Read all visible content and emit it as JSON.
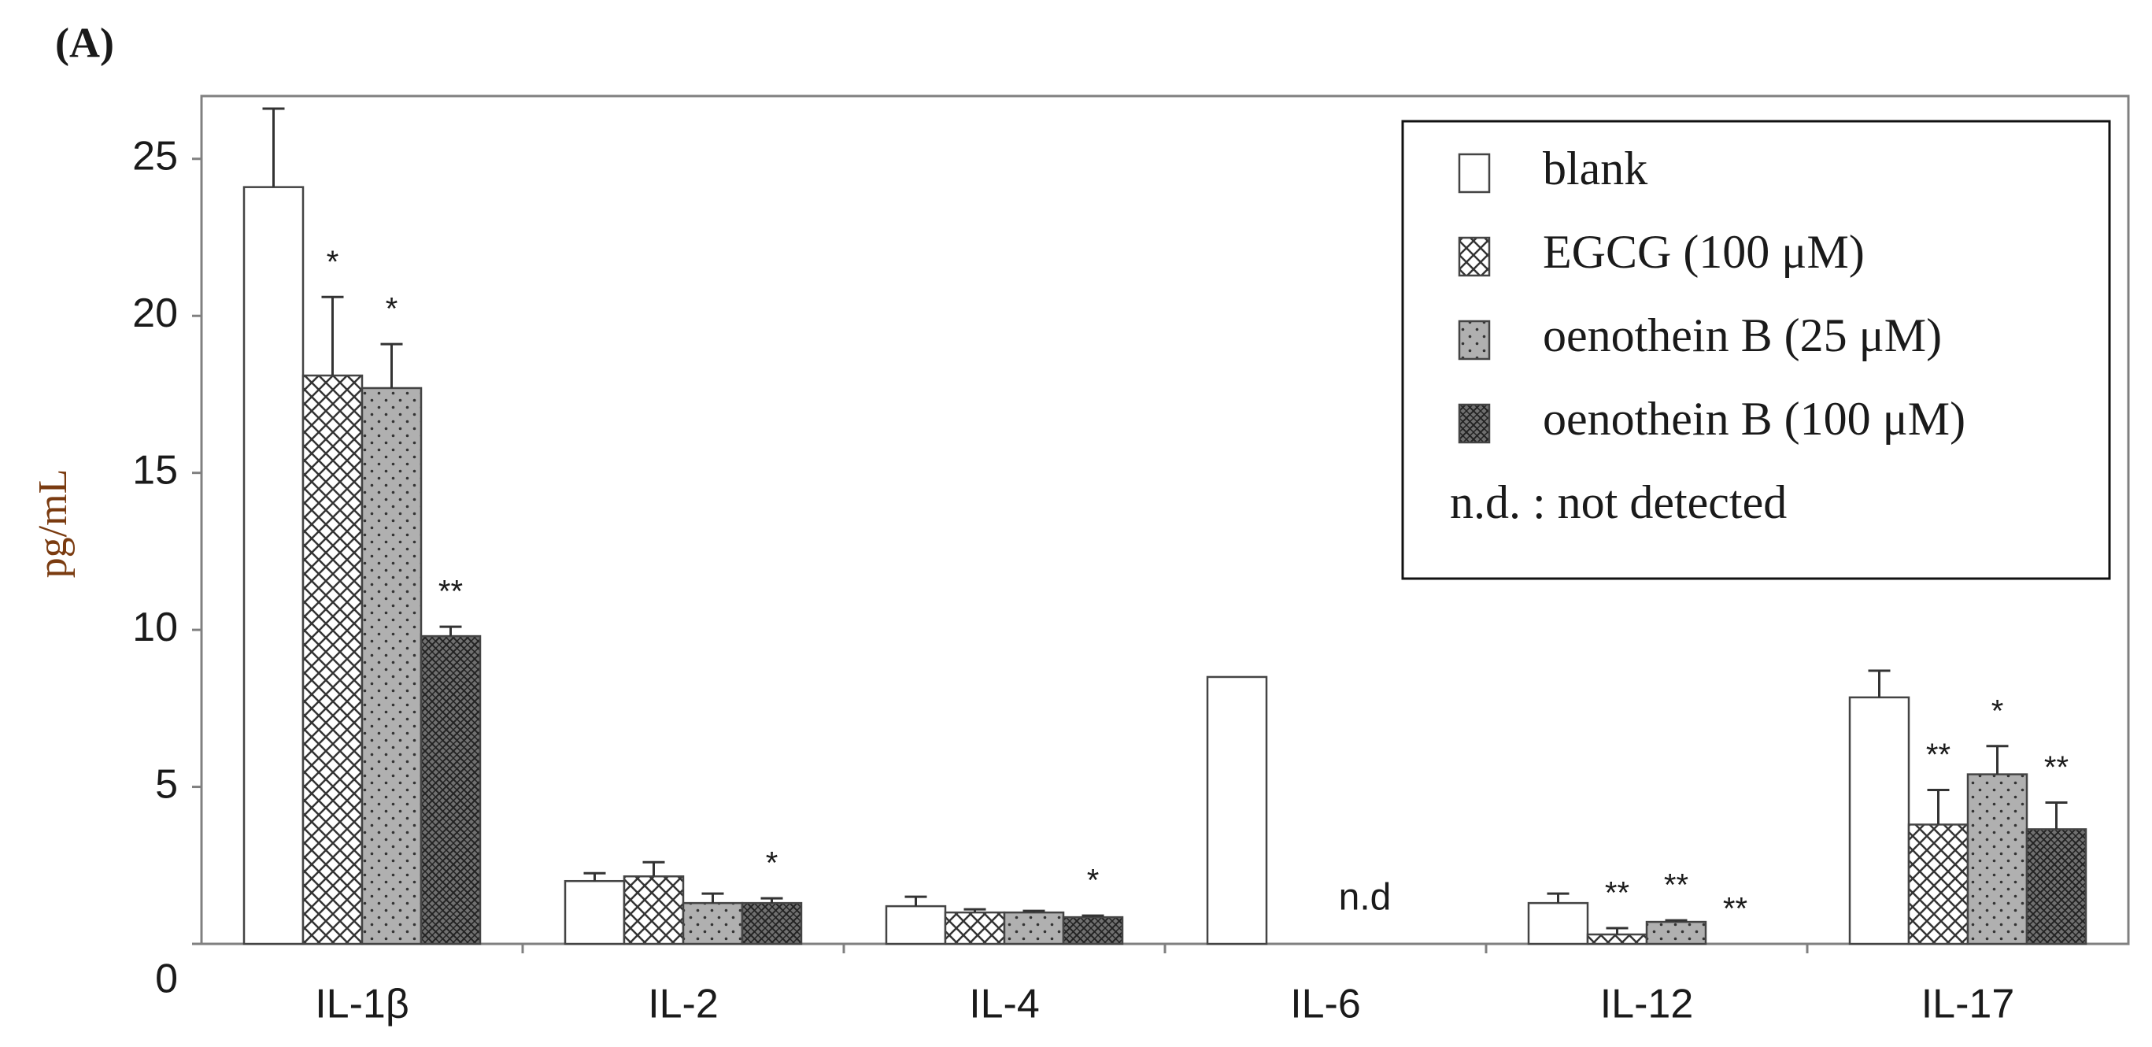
{
  "chart_data": {
    "type": "bar",
    "panel_label": "(A)",
    "y_label": "pg/mL",
    "categories": [
      "IL-1β",
      "IL-2",
      "IL-4",
      "IL-6",
      "IL-12",
      "IL-17"
    ],
    "series": [
      {
        "name": "blank",
        "color": "#ffffff",
        "pattern": "none",
        "values": [
          24.1,
          2.0,
          1.2,
          8.5,
          1.3,
          7.85
        ],
        "errors": [
          2.5,
          0.25,
          0.3,
          null,
          0.3,
          0.85
        ],
        "significance": [
          null,
          null,
          null,
          null,
          null,
          null
        ]
      },
      {
        "name": "EGCG (100 μM)",
        "color": "#ffffff",
        "pattern": "crosshatch",
        "values": [
          18.1,
          2.15,
          1.0,
          null,
          0.3,
          3.8
        ],
        "errors": [
          2.5,
          0.45,
          0.1,
          null,
          0.2,
          1.1
        ],
        "significance": [
          "*",
          null,
          null,
          null,
          "**",
          "**"
        ]
      },
      {
        "name": "oenothein B (25 μM)",
        "color": "#b0b0b0",
        "pattern": "dots",
        "values": [
          17.7,
          1.3,
          1.0,
          null,
          0.7,
          5.4
        ],
        "errors": [
          1.4,
          0.3,
          0.05,
          null,
          0.05,
          0.9
        ],
        "significance": [
          "*",
          null,
          null,
          null,
          "**",
          "*"
        ]
      },
      {
        "name": "oenothein B (100 μM)",
        "color": "#707070",
        "pattern": "dense-crosshatch",
        "values": [
          9.8,
          1.3,
          0.85,
          null,
          0,
          3.65
        ],
        "errors": [
          0.3,
          0.15,
          0.05,
          null,
          null,
          0.85
        ],
        "significance": [
          "**",
          "*",
          "*",
          null,
          "**",
          "**"
        ]
      }
    ],
    "annotations": [
      {
        "category": 3,
        "text": "n.d"
      }
    ],
    "legend_note": "n.d. :  not detected",
    "legend_position": "upper right",
    "ylim": [
      0,
      27
    ],
    "yticks": [
      0,
      5,
      10,
      15,
      20,
      25
    ],
    "grid": false
  }
}
